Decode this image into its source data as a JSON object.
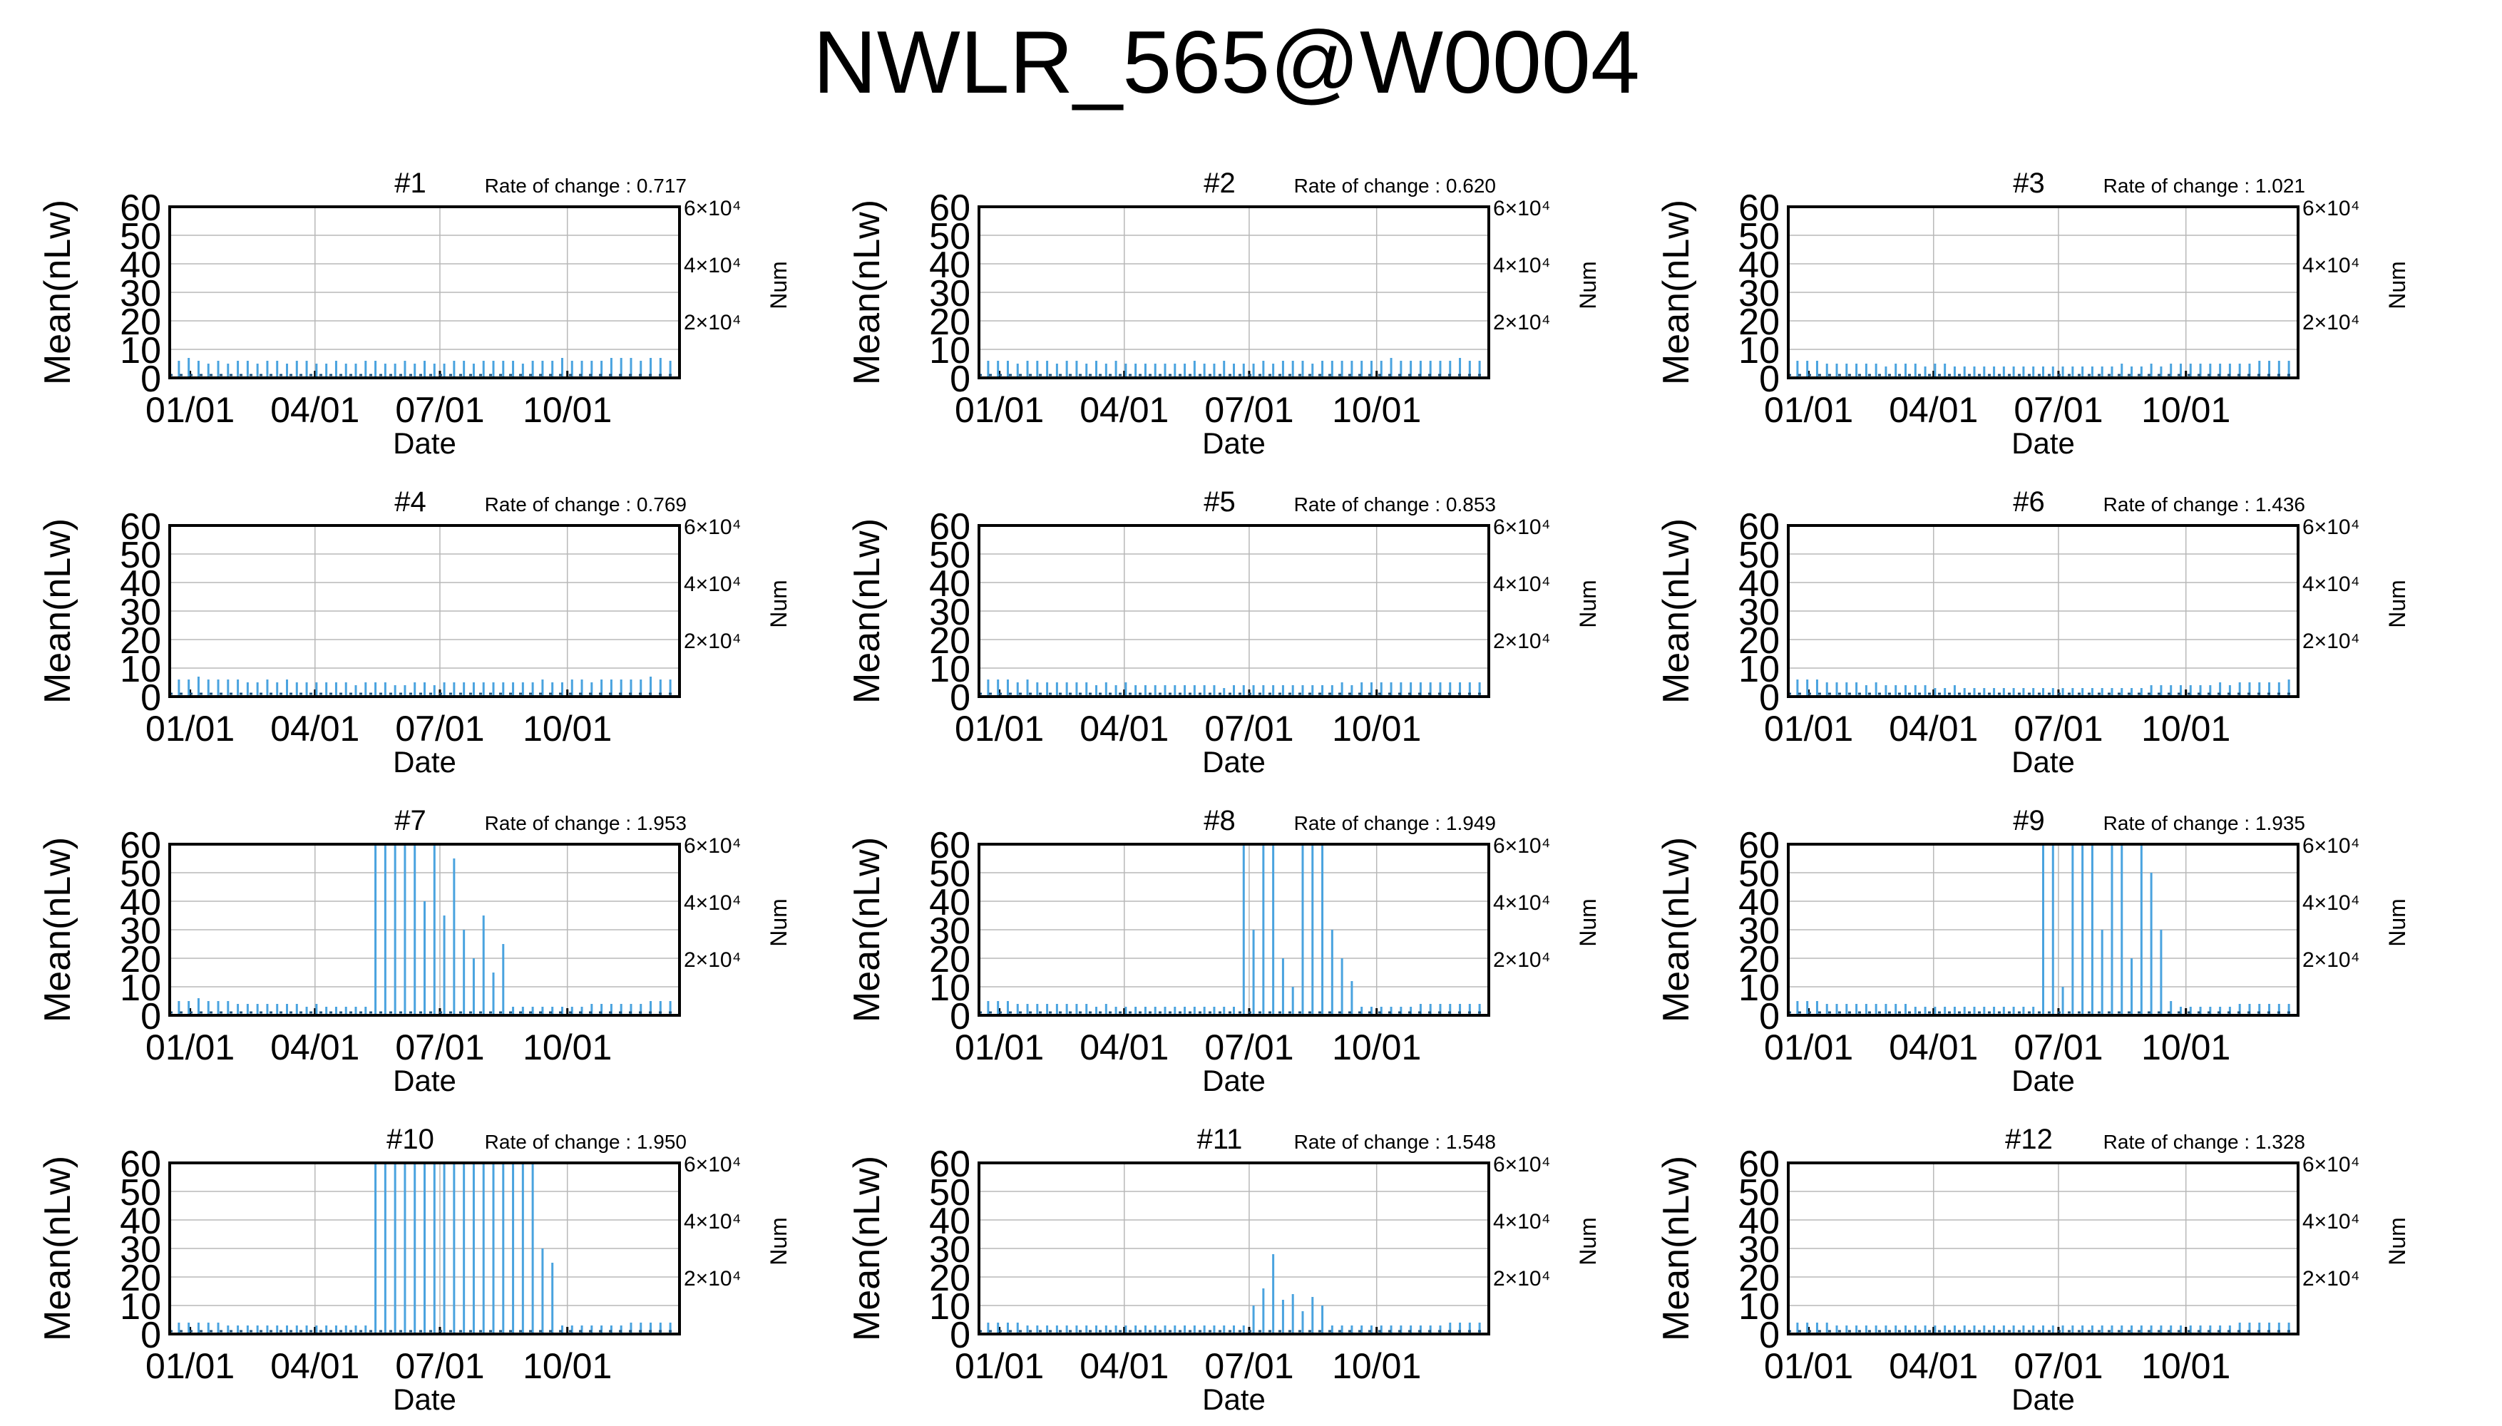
{
  "title": "NWLR_565@W0004",
  "colors": {
    "series": "#4aa3df",
    "frame": "#000000",
    "grid": "#b8b8b8"
  },
  "chart_data": [
    {
      "type": "bar",
      "title": "#1",
      "note": "Rate of change : 0.717",
      "xlabel": "Date",
      "ylabel": "Mean(nLw)",
      "y2label": "Num",
      "ylim": [
        0,
        60
      ],
      "yticks": [
        "0",
        "10",
        "20",
        "30",
        "40",
        "50",
        "60"
      ],
      "xticks": [
        "01/01",
        "04/01",
        "07/01",
        "10/01"
      ],
      "y2ticks": [
        "6×10⁴",
        "4×10⁴",
        "2×10⁴"
      ],
      "grid": true,
      "series": [
        {
          "values": [
            6,
            7,
            6,
            5,
            6,
            5,
            6,
            6,
            5,
            6,
            6,
            5,
            6,
            6,
            5,
            5,
            6,
            5,
            5,
            6,
            6,
            5,
            5,
            6,
            5,
            6,
            5,
            5,
            6,
            6,
            5,
            6,
            6,
            6,
            6,
            5,
            6,
            6,
            6,
            7,
            6,
            6,
            6,
            6,
            7,
            7,
            7,
            6,
            7,
            7,
            6
          ]
        }
      ]
    },
    {
      "type": "bar",
      "title": "#2",
      "note": "Rate of change : 0.620",
      "xlabel": "Date",
      "ylabel": "Mean(nLw)",
      "y2label": "Num",
      "ylim": [
        0,
        60
      ],
      "yticks": [
        "0",
        "10",
        "20",
        "30",
        "40",
        "50",
        "60"
      ],
      "xticks": [
        "01/01",
        "04/01",
        "07/01",
        "10/01"
      ],
      "y2ticks": [
        "6×10⁴",
        "4×10⁴",
        "2×10⁴"
      ],
      "grid": true,
      "series": [
        {
          "values": [
            6,
            6,
            6,
            5,
            6,
            6,
            6,
            5,
            6,
            6,
            5,
            6,
            5,
            6,
            5,
            5,
            5,
            5,
            5,
            5,
            5,
            6,
            5,
            5,
            6,
            5,
            5,
            5,
            6,
            5,
            6,
            6,
            6,
            5,
            6,
            6,
            6,
            6,
            6,
            6,
            6,
            7,
            6,
            6,
            6,
            6,
            6,
            6,
            7,
            6,
            6
          ]
        }
      ]
    },
    {
      "type": "bar",
      "title": "#3",
      "note": "Rate of change : 1.021",
      "xlabel": "Date",
      "ylabel": "Mean(nLw)",
      "y2label": "Num",
      "ylim": [
        0,
        60
      ],
      "yticks": [
        "0",
        "10",
        "20",
        "30",
        "40",
        "50",
        "60"
      ],
      "xticks": [
        "01/01",
        "04/01",
        "07/01",
        "10/01"
      ],
      "y2ticks": [
        "6×10⁴",
        "4×10⁴",
        "2×10⁴"
      ],
      "grid": true,
      "series": [
        {
          "values": [
            6,
            6,
            6,
            5,
            5,
            5,
            5,
            5,
            5,
            4,
            5,
            5,
            5,
            4,
            5,
            5,
            4,
            4,
            4,
            4,
            4,
            4,
            4,
            4,
            4,
            4,
            4,
            4,
            4,
            4,
            4,
            4,
            4,
            5,
            4,
            4,
            5,
            4,
            5,
            5,
            5,
            5,
            5,
            5,
            5,
            5,
            5,
            6,
            6,
            6,
            6
          ]
        }
      ]
    },
    {
      "type": "bar",
      "title": "#4",
      "note": "Rate of change : 0.769",
      "xlabel": "Date",
      "ylabel": "Mean(nLw)",
      "y2label": "Num",
      "ylim": [
        0,
        60
      ],
      "yticks": [
        "0",
        "10",
        "20",
        "30",
        "40",
        "50",
        "60"
      ],
      "xticks": [
        "01/01",
        "04/01",
        "07/01",
        "10/01"
      ],
      "y2ticks": [
        "6×10⁴",
        "4×10⁴",
        "2×10⁴"
      ],
      "grid": true,
      "series": [
        {
          "values": [
            6,
            6,
            7,
            6,
            6,
            6,
            6,
            5,
            5,
            6,
            5,
            6,
            5,
            5,
            5,
            5,
            5,
            5,
            4,
            5,
            5,
            5,
            4,
            4,
            5,
            5,
            4,
            5,
            5,
            5,
            5,
            5,
            5,
            5,
            5,
            5,
            5,
            6,
            5,
            5,
            6,
            6,
            5,
            6,
            6,
            6,
            6,
            6,
            7,
            6,
            6
          ]
        }
      ]
    },
    {
      "type": "bar",
      "title": "#5",
      "note": "Rate of change : 0.853",
      "xlabel": "Date",
      "ylabel": "Mean(nLw)",
      "y2label": "Num",
      "ylim": [
        0,
        60
      ],
      "yticks": [
        "0",
        "10",
        "20",
        "30",
        "40",
        "50",
        "60"
      ],
      "xticks": [
        "01/01",
        "04/01",
        "07/01",
        "10/01"
      ],
      "y2ticks": [
        "6×10⁴",
        "4×10⁴",
        "2×10⁴"
      ],
      "grid": true,
      "series": [
        {
          "values": [
            6,
            6,
            6,
            5,
            6,
            5,
            5,
            5,
            5,
            5,
            5,
            4,
            5,
            4,
            5,
            4,
            4,
            4,
            4,
            4,
            4,
            4,
            4,
            4,
            3,
            4,
            4,
            4,
            4,
            4,
            4,
            4,
            4,
            4,
            4,
            4,
            5,
            4,
            5,
            5,
            5,
            5,
            5,
            5,
            5,
            5,
            5,
            5,
            5,
            5,
            5
          ]
        }
      ]
    },
    {
      "type": "bar",
      "title": "#6",
      "note": "Rate of change : 1.436",
      "xlabel": "Date",
      "ylabel": "Mean(nLw)",
      "y2label": "Num",
      "ylim": [
        0,
        60
      ],
      "yticks": [
        "0",
        "10",
        "20",
        "30",
        "40",
        "50",
        "60"
      ],
      "xticks": [
        "01/01",
        "04/01",
        "07/01",
        "10/01"
      ],
      "y2ticks": [
        "6×10⁴",
        "4×10⁴",
        "2×10⁴"
      ],
      "grid": true,
      "series": [
        {
          "values": [
            6,
            6,
            6,
            5,
            5,
            5,
            5,
            4,
            5,
            4,
            4,
            4,
            4,
            4,
            3,
            3,
            4,
            3,
            3,
            3,
            3,
            3,
            3,
            3,
            3,
            3,
            3,
            3,
            3,
            3,
            3,
            3,
            3,
            3,
            3,
            3,
            4,
            4,
            4,
            4,
            4,
            4,
            4,
            5,
            4,
            5,
            5,
            5,
            5,
            5,
            6
          ]
        }
      ]
    },
    {
      "type": "bar",
      "title": "#7",
      "note": "Rate of change : 1.953",
      "xlabel": "Date",
      "ylabel": "Mean(nLw)",
      "y2label": "Num",
      "ylim": [
        0,
        60
      ],
      "yticks": [
        "0",
        "10",
        "20",
        "30",
        "40",
        "50",
        "60"
      ],
      "xticks": [
        "01/01",
        "04/01",
        "07/01",
        "10/01"
      ],
      "y2ticks": [
        "6×10⁴",
        "4×10⁴",
        "2×10⁴"
      ],
      "grid": true,
      "series": [
        {
          "values": [
            5,
            5,
            6,
            5,
            5,
            5,
            4,
            4,
            4,
            4,
            4,
            4,
            4,
            3,
            4,
            3,
            3,
            3,
            3,
            3,
            60,
            60,
            60,
            60,
            60,
            40,
            60,
            35,
            55,
            30,
            20,
            35,
            15,
            25,
            3,
            3,
            3,
            3,
            3,
            3,
            3,
            3,
            4,
            4,
            4,
            4,
            4,
            4,
            5,
            5,
            5
          ]
        }
      ]
    },
    {
      "type": "bar",
      "title": "#8",
      "note": "Rate of change : 1.949",
      "xlabel": "Date",
      "ylabel": "Mean(nLw)",
      "y2label": "Num",
      "ylim": [
        0,
        60
      ],
      "yticks": [
        "0",
        "10",
        "20",
        "30",
        "40",
        "50",
        "60"
      ],
      "xticks": [
        "01/01",
        "04/01",
        "07/01",
        "10/01"
      ],
      "y2ticks": [
        "6×10⁴",
        "4×10⁴",
        "2×10⁴"
      ],
      "grid": true,
      "series": [
        {
          "values": [
            5,
            5,
            5,
            4,
            4,
            4,
            4,
            4,
            4,
            4,
            4,
            3,
            4,
            3,
            3,
            3,
            3,
            3,
            3,
            3,
            3,
            3,
            3,
            3,
            3,
            3,
            60,
            30,
            60,
            60,
            20,
            10,
            60,
            60,
            60,
            30,
            20,
            12,
            3,
            3,
            3,
            3,
            3,
            3,
            4,
            4,
            4,
            4,
            4,
            4,
            4
          ]
        }
      ]
    },
    {
      "type": "bar",
      "title": "#9",
      "note": "Rate of change : 1.935",
      "xlabel": "Date",
      "ylabel": "Mean(nLw)",
      "y2label": "Num",
      "ylim": [
        0,
        60
      ],
      "yticks": [
        "0",
        "10",
        "20",
        "30",
        "40",
        "50",
        "60"
      ],
      "xticks": [
        "01/01",
        "04/01",
        "07/01",
        "10/01"
      ],
      "y2ticks": [
        "6×10⁴",
        "4×10⁴",
        "2×10⁴"
      ],
      "grid": true,
      "series": [
        {
          "values": [
            5,
            5,
            5,
            4,
            4,
            4,
            4,
            4,
            4,
            4,
            4,
            4,
            3,
            3,
            3,
            3,
            3,
            3,
            3,
            3,
            3,
            3,
            3,
            3,
            3,
            60,
            60,
            10,
            60,
            60,
            60,
            30,
            60,
            60,
            20,
            60,
            50,
            30,
            5,
            3,
            3,
            3,
            3,
            3,
            3,
            4,
            4,
            4,
            4,
            4,
            4
          ]
        }
      ]
    },
    {
      "type": "bar",
      "title": "#10",
      "note": "Rate of change : 1.950",
      "xlabel": "Date",
      "ylabel": "Mean(nLw)",
      "y2label": "Num",
      "ylim": [
        0,
        60
      ],
      "yticks": [
        "0",
        "10",
        "20",
        "30",
        "40",
        "50",
        "60"
      ],
      "xticks": [
        "01/01",
        "04/01",
        "07/01",
        "10/01"
      ],
      "y2ticks": [
        "6×10⁴",
        "4×10⁴",
        "2×10⁴"
      ],
      "grid": true,
      "series": [
        {
          "values": [
            4,
            4,
            4,
            4,
            4,
            3,
            3,
            3,
            3,
            3,
            3,
            3,
            3,
            3,
            3,
            3,
            3,
            3,
            3,
            3,
            60,
            60,
            60,
            60,
            60,
            60,
            60,
            60,
            60,
            60,
            60,
            60,
            60,
            60,
            60,
            60,
            60,
            30,
            25,
            3,
            3,
            3,
            3,
            3,
            3,
            3,
            4,
            4,
            4,
            4,
            4
          ]
        }
      ]
    },
    {
      "type": "bar",
      "title": "#11",
      "note": "Rate of change : 1.548",
      "xlabel": "Date",
      "ylabel": "Mean(nLw)",
      "y2label": "Num",
      "ylim": [
        0,
        60
      ],
      "yticks": [
        "0",
        "10",
        "20",
        "30",
        "40",
        "50",
        "60"
      ],
      "xticks": [
        "01/01",
        "04/01",
        "07/01",
        "10/01"
      ],
      "y2ticks": [
        "6×10⁴",
        "4×10⁴",
        "2×10⁴"
      ],
      "grid": true,
      "series": [
        {
          "values": [
            4,
            4,
            4,
            4,
            3,
            3,
            3,
            3,
            3,
            3,
            3,
            3,
            3,
            3,
            3,
            3,
            3,
            3,
            3,
            3,
            3,
            3,
            3,
            3,
            3,
            3,
            3,
            10,
            16,
            28,
            12,
            14,
            8,
            13,
            10,
            3,
            3,
            3,
            3,
            3,
            3,
            3,
            3,
            3,
            3,
            3,
            3,
            4,
            4,
            4,
            4
          ]
        }
      ]
    },
    {
      "type": "bar",
      "title": "#12",
      "note": "Rate of change : 1.328",
      "xlabel": "Date",
      "ylabel": "Mean(nLw)",
      "y2label": "Num",
      "ylim": [
        0,
        60
      ],
      "yticks": [
        "0",
        "10",
        "20",
        "30",
        "40",
        "50",
        "60"
      ],
      "xticks": [
        "01/01",
        "04/01",
        "07/01",
        "10/01"
      ],
      "y2ticks": [
        "6×10⁴",
        "4×10⁴",
        "2×10⁴"
      ],
      "grid": true,
      "series": [
        {
          "values": [
            4,
            4,
            4,
            4,
            3,
            3,
            3,
            3,
            3,
            3,
            3,
            3,
            3,
            3,
            3,
            3,
            3,
            3,
            3,
            3,
            3,
            3,
            3,
            3,
            3,
            3,
            3,
            3,
            3,
            3,
            3,
            3,
            3,
            3,
            3,
            3,
            3,
            3,
            3,
            3,
            3,
            3,
            3,
            3,
            3,
            4,
            4,
            4,
            4,
            4,
            4
          ]
        }
      ]
    }
  ]
}
